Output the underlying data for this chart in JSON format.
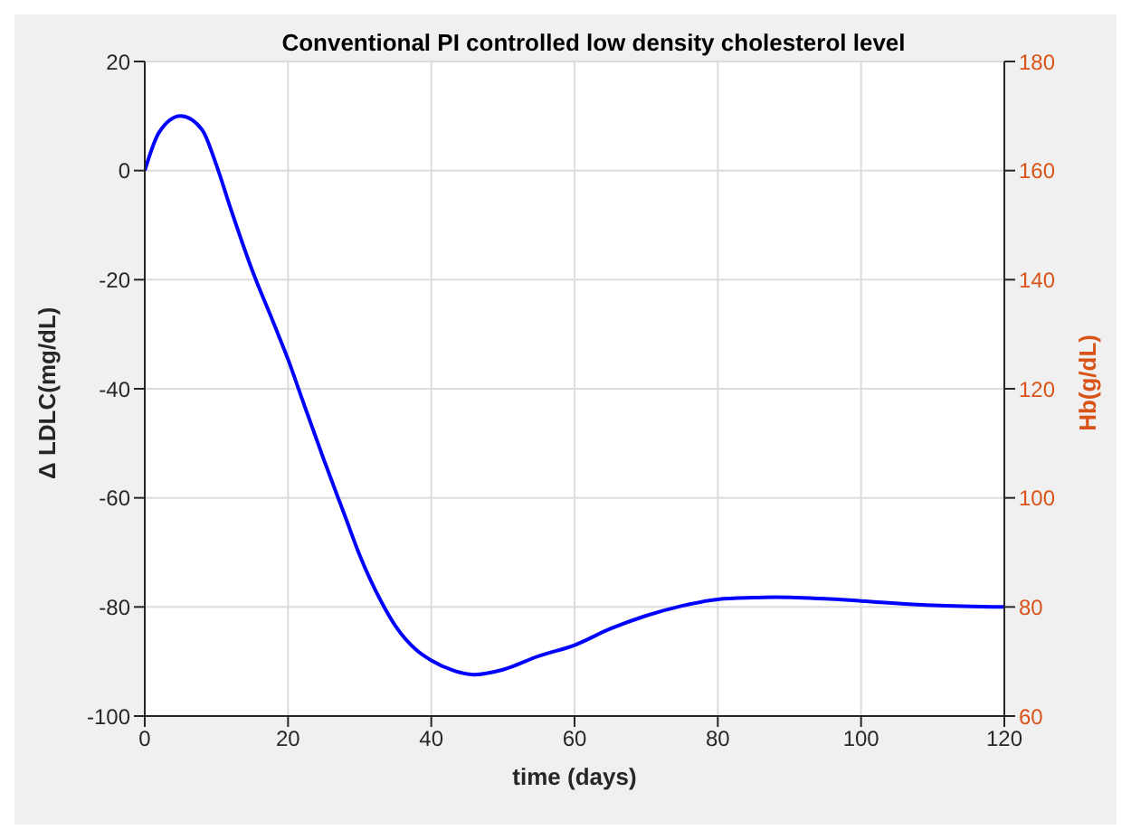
{
  "chart_data": {
    "type": "line",
    "title": "Conventional PI controlled low density cholesterol level",
    "xlabel": "time (days)",
    "ylabel": "Δ LDLC(mg/dL)",
    "y2label": "Hb(g/dL)",
    "x": [
      0,
      2,
      5,
      8,
      10,
      12,
      15,
      18,
      20,
      22,
      25,
      28,
      30,
      33,
      35,
      38,
      40,
      43,
      46,
      50,
      55,
      60,
      65,
      70,
      75,
      80,
      85,
      88,
      95,
      100,
      110,
      120
    ],
    "series": [
      {
        "color": "#0000ff",
        "values": [
          0,
          7,
          10,
          7.5,
          1,
          -7,
          -18.3,
          -28,
          -34.6,
          -42,
          -53,
          -63.5,
          -70.5,
          -79,
          -83.5,
          -88,
          -89.8,
          -91.6,
          -92.4,
          -91.5,
          -89,
          -87,
          -84,
          -81.6,
          -79.8,
          -78.6,
          -78.3,
          -78.2,
          -78.5,
          -78.9,
          -79.7,
          -80
        ]
      }
    ],
    "xlim": [
      0,
      120
    ],
    "xticks": [
      0,
      20,
      40,
      60,
      80,
      100,
      120
    ],
    "ylim": [
      -100,
      20
    ],
    "yticks": [
      -100,
      -80,
      -60,
      -40,
      -20,
      0,
      20
    ],
    "y2lim": [
      60,
      180
    ],
    "y2ticks": [
      60,
      80,
      100,
      120,
      140,
      160,
      180
    ],
    "grid": true,
    "marker": "none",
    "line_style": "solid",
    "legend": false
  }
}
